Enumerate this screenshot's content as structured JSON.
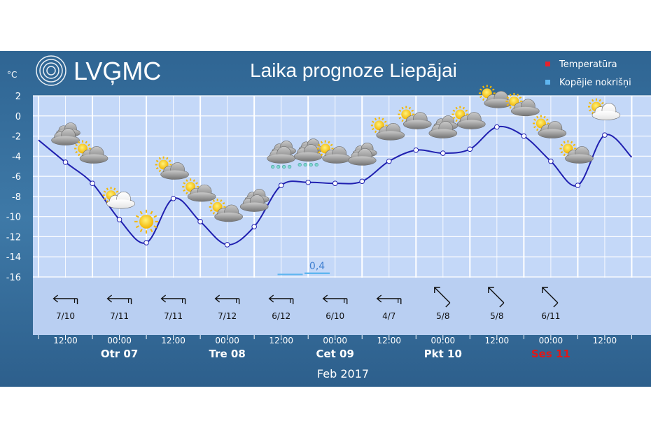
{
  "header": {
    "logo_text": "LVĢMC",
    "title": "Laika prognoze Liepājai",
    "unit": "°C"
  },
  "legend": [
    {
      "label": "Temperatūra",
      "color": "#e8212b"
    },
    {
      "label": "Kopējie nokrišņi",
      "color": "#5fb6f0"
    }
  ],
  "colors": {
    "frame": "#3a6e9b",
    "plot_bg": "#c4d8f8",
    "grid": "#ffffff",
    "line": "#2020b0",
    "weekend_day": "#e01818"
  },
  "chart_data": {
    "type": "line",
    "title": "Laika prognoze Liepājai",
    "ylabel": "°C",
    "ylim": [
      -16,
      2
    ],
    "yticks": [
      2,
      0,
      -2,
      -4,
      -6,
      -8,
      -10,
      -12,
      -14,
      -16
    ],
    "grid": true,
    "legend_position": "top-right",
    "x_unit": "hours from 06:00 Feb 06 2017",
    "series": [
      {
        "name": "Temperatūra",
        "points": [
          [
            0,
            -2.4
          ],
          [
            6,
            -4.6
          ],
          [
            12,
            -6.7
          ],
          [
            18,
            -10.3
          ],
          [
            24,
            -12.6
          ],
          [
            30,
            -8.2
          ],
          [
            36,
            -10.5
          ],
          [
            42,
            -12.8
          ],
          [
            48,
            -11.0
          ],
          [
            54,
            -6.9
          ],
          [
            60,
            -6.6
          ],
          [
            66,
            -6.7
          ],
          [
            72,
            -6.5
          ],
          [
            78,
            -4.5
          ],
          [
            84,
            -3.4
          ],
          [
            90,
            -3.7
          ],
          [
            96,
            -3.3
          ],
          [
            102,
            -1.1
          ],
          [
            108,
            -2.0
          ],
          [
            114,
            -4.5
          ],
          [
            120,
            -6.9
          ],
          [
            126,
            -1.9
          ],
          [
            132,
            -4.1
          ]
        ]
      },
      {
        "name": "Kopējie nokrišņi",
        "bars": [
          {
            "x": 56,
            "value": 0.1
          },
          {
            "x": 62,
            "value": 0.4
          }
        ]
      }
    ],
    "precip_label": "0,4",
    "wind": [
      {
        "x": 6,
        "label": "7/10",
        "dir": "W"
      },
      {
        "x": 18,
        "label": "7/11",
        "dir": "W"
      },
      {
        "x": 30,
        "label": "7/11",
        "dir": "W"
      },
      {
        "x": 42,
        "label": "7/12",
        "dir": "W"
      },
      {
        "x": 54,
        "label": "6/12",
        "dir": "W"
      },
      {
        "x": 66,
        "label": "6/10",
        "dir": "W"
      },
      {
        "x": 78,
        "label": "4/7",
        "dir": "W"
      },
      {
        "x": 90,
        "label": "5/8",
        "dir": "NW"
      },
      {
        "x": 102,
        "label": "5/8",
        "dir": "NW"
      },
      {
        "x": 114,
        "label": "6/11",
        "dir": "NW"
      }
    ],
    "weather_icons": [
      {
        "x": 6,
        "temp": -2.0,
        "icon": "cloudy-icon"
      },
      {
        "x": 12,
        "temp": -3.8,
        "icon": "partly-cloudy-icon"
      },
      {
        "x": 18,
        "temp": -8.3,
        "icon": "partly-cloudy-night-icon"
      },
      {
        "x": 24,
        "temp": -10.5,
        "icon": "sun-icon"
      },
      {
        "x": 30,
        "temp": -5.4,
        "icon": "partly-cloudy-icon"
      },
      {
        "x": 36,
        "temp": -7.6,
        "icon": "partly-cloudy-icon"
      },
      {
        "x": 42,
        "temp": -9.6,
        "icon": "partly-cloudy-icon"
      },
      {
        "x": 48,
        "temp": -8.6,
        "icon": "cloudy-icon"
      },
      {
        "x": 54,
        "temp": -3.8,
        "icon": "rain-icon"
      },
      {
        "x": 60,
        "temp": -3.6,
        "icon": "rain-icon"
      },
      {
        "x": 66,
        "temp": -3.8,
        "icon": "partly-cloudy-icon"
      },
      {
        "x": 72,
        "temp": -4.0,
        "icon": "cloudy-icon"
      },
      {
        "x": 78,
        "temp": -1.5,
        "icon": "partly-cloudy-icon"
      },
      {
        "x": 84,
        "temp": -0.4,
        "icon": "partly-cloudy-icon"
      },
      {
        "x": 90,
        "temp": -1.3,
        "icon": "cloudy-icon"
      },
      {
        "x": 96,
        "temp": -0.4,
        "icon": "partly-cloudy-icon"
      },
      {
        "x": 102,
        "temp": 1.7,
        "icon": "partly-cloudy-icon"
      },
      {
        "x": 108,
        "temp": 0.9,
        "icon": "partly-cloudy-icon"
      },
      {
        "x": 114,
        "temp": -1.3,
        "icon": "partly-cloudy-icon"
      },
      {
        "x": 120,
        "temp": -3.8,
        "icon": "partly-cloudy-icon"
      },
      {
        "x": 126,
        "temp": 0.5,
        "icon": "partly-cloudy-night-icon"
      }
    ],
    "time_ticks": [
      {
        "x": 6,
        "label": "12:00"
      },
      {
        "x": 18,
        "label": "00:00"
      },
      {
        "x": 30,
        "label": "12:00"
      },
      {
        "x": 42,
        "label": "00:00"
      },
      {
        "x": 54,
        "label": "12:00"
      },
      {
        "x": 66,
        "label": "00:00"
      },
      {
        "x": 78,
        "label": "12:00"
      },
      {
        "x": 90,
        "label": "00:00"
      },
      {
        "x": 102,
        "label": "12:00"
      },
      {
        "x": 114,
        "label": "00:00"
      },
      {
        "x": 126,
        "label": "12:00"
      }
    ],
    "days": [
      {
        "x": 18,
        "label": "Otr 07",
        "weekend": false
      },
      {
        "x": 42,
        "label": "Tre 08",
        "weekend": false
      },
      {
        "x": 66,
        "label": "Cet 09",
        "weekend": false
      },
      {
        "x": 90,
        "label": "Pkt 10",
        "weekend": false
      },
      {
        "x": 114,
        "label": "Ses 11",
        "weekend": true
      }
    ],
    "month_label": "Feb 2017",
    "xlim": [
      0,
      132
    ]
  }
}
